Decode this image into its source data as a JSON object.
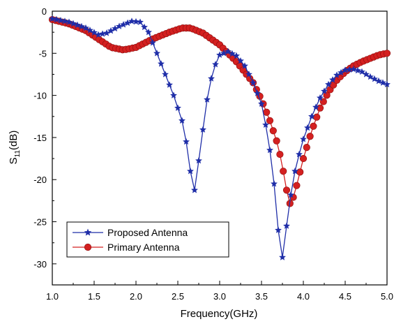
{
  "chart_data": {
    "type": "line",
    "xlabel": "Frequency(GHz)",
    "ylabel": {
      "main": "S",
      "sub": "11",
      "unit": "(dB)"
    },
    "xlim": [
      1.0,
      5.0
    ],
    "ylim": [
      -32.5,
      0
    ],
    "xticks": [
      "1.0",
      "1.5",
      "2.0",
      "2.5",
      "3.0",
      "3.5",
      "4.0",
      "4.5",
      "5.0"
    ],
    "yticks": [
      "0",
      "-5",
      "-10",
      "-15",
      "-20",
      "-25",
      "-30"
    ],
    "grid": false,
    "legend_position": "bottom-left",
    "series": [
      {
        "name": "Proposed Antenna",
        "color": "#1f2ea8",
        "marker": "star",
        "anchors": [
          [
            1.0,
            -0.9
          ],
          [
            1.2,
            -1.3
          ],
          [
            1.4,
            -2.0
          ],
          [
            1.55,
            -2.8
          ],
          [
            1.65,
            -2.6
          ],
          [
            1.8,
            -1.8
          ],
          [
            1.95,
            -1.2
          ],
          [
            2.05,
            -1.3
          ],
          [
            2.15,
            -2.5
          ],
          [
            2.25,
            -5.0
          ],
          [
            2.35,
            -7.5
          ],
          [
            2.45,
            -10.0
          ],
          [
            2.55,
            -13.0
          ],
          [
            2.6,
            -15.5
          ],
          [
            2.65,
            -19.0
          ],
          [
            2.68,
            -22.5
          ],
          [
            2.72,
            -20.0
          ],
          [
            2.78,
            -15.5
          ],
          [
            2.85,
            -10.5
          ],
          [
            2.92,
            -7.0
          ],
          [
            3.0,
            -5.2
          ],
          [
            3.1,
            -4.8
          ],
          [
            3.2,
            -5.3
          ],
          [
            3.3,
            -6.5
          ],
          [
            3.4,
            -8.5
          ],
          [
            3.5,
            -11.0
          ],
          [
            3.55,
            -13.5
          ],
          [
            3.6,
            -16.5
          ],
          [
            3.65,
            -20.5
          ],
          [
            3.7,
            -26.0
          ],
          [
            3.74,
            -29.8
          ],
          [
            3.78,
            -27.5
          ],
          [
            3.82,
            -23.5
          ],
          [
            3.9,
            -19.0
          ],
          [
            3.95,
            -17.0
          ],
          [
            4.0,
            -15.2
          ],
          [
            4.1,
            -12.5
          ],
          [
            4.2,
            -10.3
          ],
          [
            4.3,
            -8.7
          ],
          [
            4.4,
            -7.6
          ],
          [
            4.5,
            -7.0
          ],
          [
            4.6,
            -6.9
          ],
          [
            4.7,
            -7.2
          ],
          [
            4.8,
            -7.8
          ],
          [
            4.9,
            -8.3
          ],
          [
            5.0,
            -8.7
          ]
        ]
      },
      {
        "name": "Primary Antenna",
        "color": "#d42020",
        "marker": "circle",
        "anchors": [
          [
            1.0,
            -1.0
          ],
          [
            1.2,
            -1.5
          ],
          [
            1.4,
            -2.3
          ],
          [
            1.55,
            -3.3
          ],
          [
            1.7,
            -4.3
          ],
          [
            1.85,
            -4.6
          ],
          [
            2.0,
            -4.3
          ],
          [
            2.2,
            -3.3
          ],
          [
            2.4,
            -2.5
          ],
          [
            2.55,
            -2.0
          ],
          [
            2.65,
            -2.0
          ],
          [
            2.8,
            -2.6
          ],
          [
            3.0,
            -4.0
          ],
          [
            3.2,
            -6.0
          ],
          [
            3.4,
            -8.5
          ],
          [
            3.5,
            -10.5
          ],
          [
            3.6,
            -13.0
          ],
          [
            3.7,
            -16.0
          ],
          [
            3.78,
            -20.0
          ],
          [
            3.82,
            -22.5
          ],
          [
            3.85,
            -23.0
          ],
          [
            3.9,
            -21.5
          ],
          [
            4.0,
            -17.5
          ],
          [
            4.1,
            -14.2
          ],
          [
            4.2,
            -11.5
          ],
          [
            4.3,
            -9.6
          ],
          [
            4.4,
            -8.2
          ],
          [
            4.5,
            -7.2
          ],
          [
            4.6,
            -6.5
          ],
          [
            4.7,
            -6.0
          ],
          [
            4.8,
            -5.6
          ],
          [
            4.9,
            -5.2
          ],
          [
            5.0,
            -5.0
          ]
        ]
      }
    ]
  }
}
